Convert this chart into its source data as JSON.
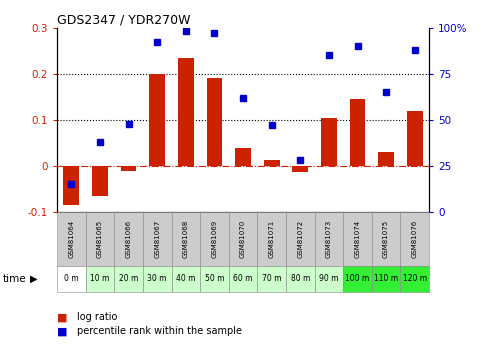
{
  "title": "GDS2347 / YDR270W",
  "samples": [
    "GSM81064",
    "GSM81065",
    "GSM81066",
    "GSM81067",
    "GSM81068",
    "GSM81069",
    "GSM81070",
    "GSM81071",
    "GSM81072",
    "GSM81073",
    "GSM81074",
    "GSM81075",
    "GSM81076"
  ],
  "time_labels": [
    "0 m",
    "10 m",
    "20 m",
    "30 m",
    "40 m",
    "50 m",
    "60 m",
    "70 m",
    "80 m",
    "90 m",
    "100 m",
    "110 m",
    "120 m"
  ],
  "log_ratio": [
    -0.085,
    -0.065,
    -0.01,
    0.2,
    0.235,
    0.19,
    0.04,
    0.013,
    -0.013,
    0.105,
    0.145,
    0.03,
    0.12
  ],
  "percentile_rank": [
    15,
    38,
    48,
    92,
    98,
    97,
    62,
    47,
    28,
    85,
    90,
    65,
    88
  ],
  "bar_color": "#CC2200",
  "dot_color": "#0000CC",
  "bg_color": "#FFFFFF",
  "zero_line_color": "#CC2200",
  "ylim_left": [
    -0.1,
    0.3
  ],
  "ylim_right": [
    0,
    100
  ],
  "yticks_left": [
    -0.1,
    0.0,
    0.1,
    0.2,
    0.3
  ],
  "yticks_right": [
    0,
    25,
    50,
    75,
    100
  ],
  "ytick_labels_right": [
    "0",
    "25",
    "50",
    "75",
    "100%"
  ],
  "cell_colors_time": [
    "#FFFFFF",
    "#CCFFCC",
    "#CCFFCC",
    "#CCFFCC",
    "#CCFFCC",
    "#CCFFCC",
    "#CCFFCC",
    "#CCFFCC",
    "#CCFFCC",
    "#CCFFCC",
    "#33EE33",
    "#33EE33",
    "#33EE33"
  ],
  "cell_colors_gsm": [
    "#CCCCCC",
    "#CCCCCC",
    "#CCCCCC",
    "#CCCCCC",
    "#CCCCCC",
    "#CCCCCC",
    "#CCCCCC",
    "#CCCCCC",
    "#CCCCCC",
    "#CCCCCC",
    "#CCCCCC",
    "#CCCCCC",
    "#CCCCCC"
  ]
}
